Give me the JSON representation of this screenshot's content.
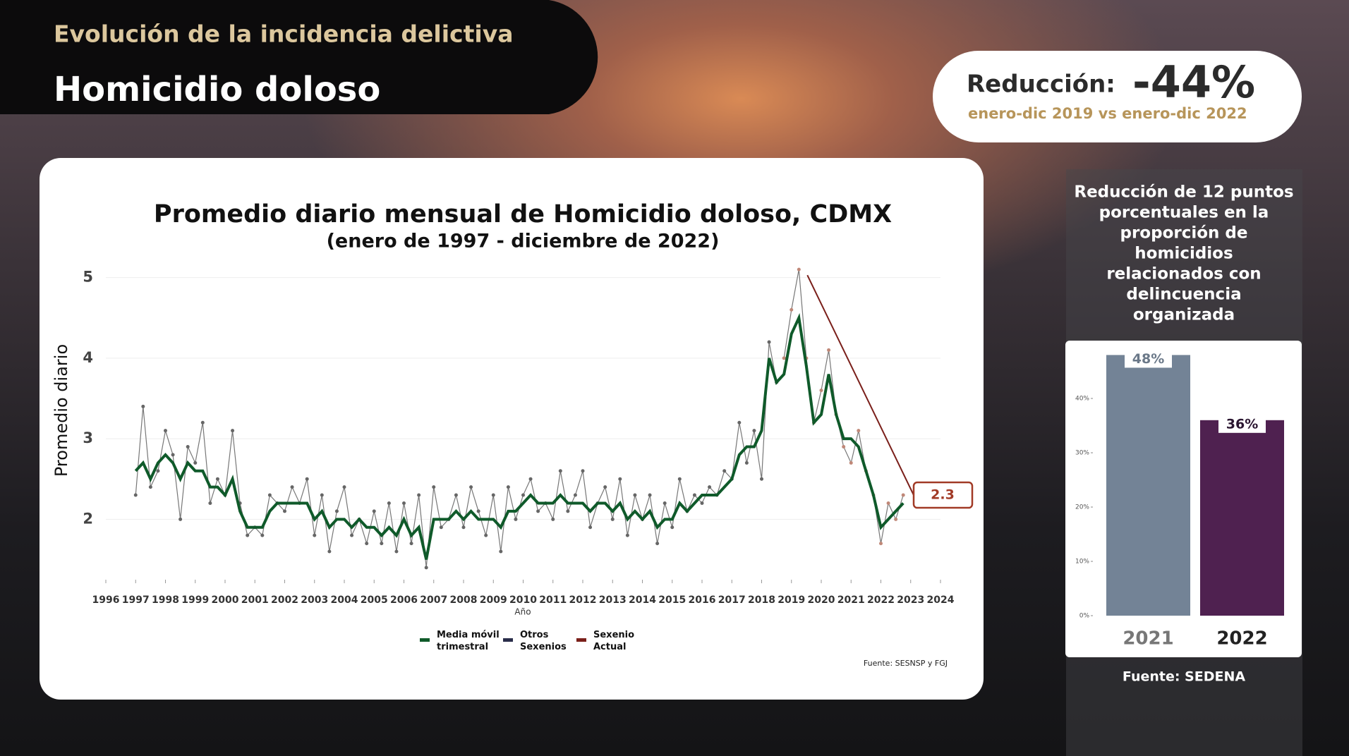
{
  "header": {
    "kicker": "Evolución de la incidencia delictiva",
    "title": "Homicidio doloso"
  },
  "reduction": {
    "label": "Reducción:",
    "value": "-44%",
    "period": "enero-dic 2019 vs enero-dic 2022"
  },
  "side_note": {
    "lines": [
      "Reducción de 12 puntos",
      "porcentuales en la",
      "proporción de",
      "homicidios",
      "relacionados con",
      "delincuencia",
      "organizada"
    ],
    "source": "Fuente: SEDENA"
  },
  "chart_data": [
    {
      "type": "line",
      "title": "Promedio diario mensual de Homicidio doloso, CDMX",
      "subtitle": "(enero de 1997 - diciembre de 2022)",
      "x_label": "Año",
      "y_label": "Promedio diario",
      "source": "Fuente: SESNSP y FGJ",
      "x": [
        1997,
        1997.25,
        1997.5,
        1997.75,
        1998,
        1998.25,
        1998.5,
        1998.75,
        1999,
        1999.25,
        1999.5,
        1999.75,
        2000,
        2000.25,
        2000.5,
        2000.75,
        2001,
        2001.25,
        2001.5,
        2001.75,
        2002,
        2002.25,
        2002.5,
        2002.75,
        2003,
        2003.25,
        2003.5,
        2003.75,
        2004,
        2004.25,
        2004.5,
        2004.75,
        2005,
        2005.25,
        2005.5,
        2005.75,
        2006,
        2006.25,
        2006.5,
        2006.75,
        2007,
        2007.25,
        2007.5,
        2007.75,
        2008,
        2008.25,
        2008.5,
        2008.75,
        2009,
        2009.25,
        2009.5,
        2009.75,
        2010,
        2010.25,
        2010.5,
        2010.75,
        2011,
        2011.25,
        2011.5,
        2011.75,
        2012,
        2012.25,
        2012.5,
        2012.75,
        2013,
        2013.25,
        2013.5,
        2013.75,
        2014,
        2014.25,
        2014.5,
        2014.75,
        2015,
        2015.25,
        2015.5,
        2015.75,
        2016,
        2016.25,
        2016.5,
        2016.75,
        2017,
        2017.25,
        2017.5,
        2017.75,
        2018,
        2018.25,
        2018.5,
        2018.75,
        2019,
        2019.25,
        2019.5,
        2019.75,
        2020,
        2020.25,
        2020.5,
        2020.75,
        2021,
        2021.25,
        2021.5,
        2021.75,
        2022,
        2022.25,
        2022.5,
        2022.75
      ],
      "series": [
        {
          "name": "Media móvil trimestral",
          "color": "#0f5a2a",
          "values": [
            2.6,
            2.7,
            2.5,
            2.7,
            2.8,
            2.7,
            2.5,
            2.7,
            2.6,
            2.6,
            2.4,
            2.4,
            2.3,
            2.5,
            2.1,
            1.9,
            1.9,
            1.9,
            2.1,
            2.2,
            2.2,
            2.2,
            2.2,
            2.2,
            2.0,
            2.1,
            1.9,
            2.0,
            2.0,
            1.9,
            2.0,
            1.9,
            1.9,
            1.8,
            1.9,
            1.8,
            2.0,
            1.8,
            1.9,
            1.5,
            2.0,
            2.0,
            2.0,
            2.1,
            2.0,
            2.1,
            2.0,
            2.0,
            2.0,
            1.9,
            2.1,
            2.1,
            2.2,
            2.3,
            2.2,
            2.2,
            2.2,
            2.3,
            2.2,
            2.2,
            2.2,
            2.1,
            2.2,
            2.2,
            2.1,
            2.2,
            2.0,
            2.1,
            2.0,
            2.1,
            1.9,
            2.0,
            2.0,
            2.2,
            2.1,
            2.2,
            2.3,
            2.3,
            2.3,
            2.4,
            2.5,
            2.8,
            2.9,
            2.9,
            3.1,
            4.0,
            3.7,
            3.8,
            4.3,
            4.5,
            3.9,
            3.2,
            3.3,
            3.8,
            3.3,
            3.0,
            3.0,
            2.9,
            2.6,
            2.3,
            1.9,
            2.0,
            2.1,
            2.2
          ]
        },
        {
          "name": "Otros Sexenios",
          "color": "#2a2d4a",
          "values": [
            2.3,
            3.4,
            2.4,
            2.6,
            3.1,
            2.8,
            2.0,
            2.9,
            2.7,
            3.2,
            2.2,
            2.5,
            2.3,
            3.1,
            2.2,
            1.8,
            1.9,
            1.8,
            2.3,
            2.2,
            2.1,
            2.4,
            2.2,
            2.5,
            1.8,
            2.3,
            1.6,
            2.1,
            2.4,
            1.8,
            2.0,
            1.7,
            2.1,
            1.7,
            2.2,
            1.6,
            2.2,
            1.7,
            2.3,
            1.4,
            2.4,
            1.9,
            2.0,
            2.3,
            1.9,
            2.4,
            2.1,
            1.8,
            2.3,
            1.6,
            2.4,
            2.0,
            2.3,
            2.5,
            2.1,
            2.2,
            2.0,
            2.6,
            2.1,
            2.3,
            2.6,
            1.9,
            2.2,
            2.4,
            2.0,
            2.5,
            1.8,
            2.3,
            2.0,
            2.3,
            1.7,
            2.2,
            1.9,
            2.5,
            2.1,
            2.3,
            2.2,
            2.4,
            2.3,
            2.6,
            2.5,
            3.2,
            2.7,
            3.1,
            2.5,
            4.2,
            3.7,
            null,
            null,
            null,
            null,
            null,
            null,
            null,
            null,
            null,
            null,
            null,
            null,
            null,
            null,
            null,
            null,
            null
          ]
        },
        {
          "name": "Sexenio Actual",
          "color": "#7a1f1a",
          "values": [
            null,
            null,
            null,
            null,
            null,
            null,
            null,
            null,
            null,
            null,
            null,
            null,
            null,
            null,
            null,
            null,
            null,
            null,
            null,
            null,
            null,
            null,
            null,
            null,
            null,
            null,
            null,
            null,
            null,
            null,
            null,
            null,
            null,
            null,
            null,
            null,
            null,
            null,
            null,
            null,
            null,
            null,
            null,
            null,
            null,
            null,
            null,
            null,
            null,
            null,
            null,
            null,
            null,
            null,
            null,
            null,
            null,
            null,
            null,
            null,
            null,
            null,
            null,
            null,
            null,
            null,
            null,
            null,
            null,
            null,
            null,
            null,
            null,
            null,
            null,
            null,
            null,
            null,
            null,
            null,
            null,
            null,
            null,
            null,
            null,
            null,
            null,
            4.0,
            4.6,
            5.1,
            4.0,
            3.2,
            3.6,
            4.1,
            3.3,
            2.9,
            2.7,
            3.1,
            2.6,
            2.3,
            1.7,
            2.2,
            2.0,
            2.3
          ]
        }
      ],
      "end_value": 2.3,
      "xlim": [
        1996,
        2024
      ],
      "xticks": [
        1996,
        1997,
        1998,
        1999,
        2000,
        2001,
        2002,
        2003,
        2004,
        2005,
        2006,
        2007,
        2008,
        2009,
        2010,
        2011,
        2012,
        2013,
        2014,
        2015,
        2016,
        2017,
        2018,
        2019,
        2020,
        2021,
        2022,
        2023,
        2024
      ],
      "ylim": [
        1.25,
        5.25
      ],
      "yticks": [
        2,
        3,
        4,
        5
      ]
    },
    {
      "type": "bar",
      "categories": [
        "2021",
        "2022"
      ],
      "values": [
        48,
        36
      ],
      "value_labels": [
        "48%",
        "36%"
      ],
      "colors": [
        "#738396",
        "#4f2150"
      ],
      "ylim": [
        0,
        50
      ],
      "yticks": [
        {
          "value": 0,
          "label": "0%"
        },
        {
          "value": 10,
          "label": "10%"
        },
        {
          "value": 20,
          "label": "20%"
        },
        {
          "value": 30,
          "label": "30%"
        },
        {
          "value": 40,
          "label": "40%"
        }
      ]
    }
  ]
}
